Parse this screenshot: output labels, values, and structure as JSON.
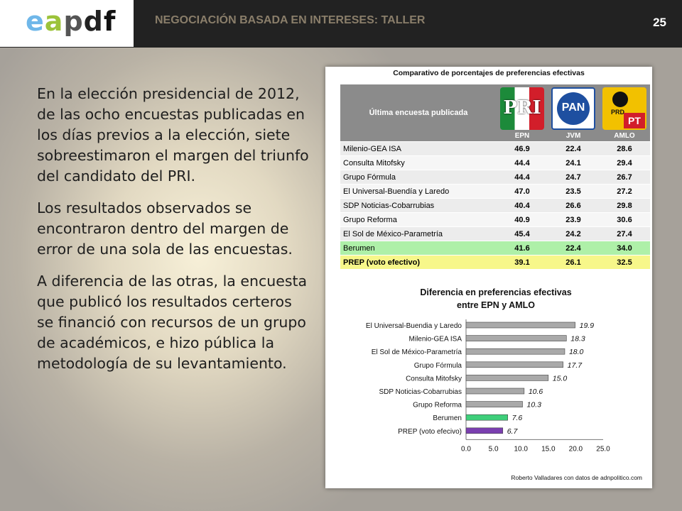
{
  "header": {
    "logo": [
      "e",
      "a",
      "p",
      "d",
      "f"
    ],
    "title": "NEGOCIACIÓN BASADA EN INTERESES: TALLER",
    "page_number": "25"
  },
  "body": {
    "paragraphs": [
      "En la elección presidencial de 2012, de las ocho encuestas publicadas en los días previos a la elección, siete sobreestimaron el margen del triunfo del candidato del PRI.",
      "Los resultados observados se encontraron dentro del margen de error de una sola de las encuestas.",
      "A diferencia de las otras, la encuesta que publicó los resultados certeros se financió con recursos de un grupo de académicos, e hizo pública la metodología de su levantamiento."
    ]
  },
  "table": {
    "title": "Comparativo de porcentajes de preferencias efectivas",
    "header_label": "Última encuesta publicada",
    "parties": [
      {
        "logo_text": "PRI",
        "candidate": "EPN",
        "icon": "pri-logo-icon"
      },
      {
        "logo_text": "PAN",
        "candidate": "JVM",
        "icon": "pan-logo-icon"
      },
      {
        "logo_text": "PRD",
        "logo_text2": "PT",
        "candidate": "AMLO",
        "icon": "prd-pt-logo-icon"
      }
    ],
    "rows": [
      {
        "name": "Milenio-GEA ISA",
        "epn": "46.9",
        "jvm": "22.4",
        "amlo": "28.6"
      },
      {
        "name": "Consulta Mitofsky",
        "epn": "44.4",
        "jvm": "24.1",
        "amlo": "29.4"
      },
      {
        "name": "Grupo Fórmula",
        "epn": "44.4",
        "jvm": "24.7",
        "amlo": "26.7"
      },
      {
        "name": "El Universal-Buendía y Laredo",
        "epn": "47.0",
        "jvm": "23.5",
        "amlo": "27.2"
      },
      {
        "name": "SDP Noticias-Cobarrubias",
        "epn": "40.4",
        "jvm": "26.6",
        "amlo": "29.8"
      },
      {
        "name": "Grupo Reforma",
        "epn": "40.9",
        "jvm": "23.9",
        "amlo": "30.6"
      },
      {
        "name": "El Sol de México-Parametría",
        "epn": "45.4",
        "jvm": "24.2",
        "amlo": "27.4"
      },
      {
        "name": "Berumen",
        "epn": "41.6",
        "jvm": "22.4",
        "amlo": "34.0"
      },
      {
        "name": "PREP (voto efectivo)",
        "epn": "39.1",
        "jvm": "26.1",
        "amlo": "32.5"
      }
    ],
    "colors": {
      "berumen": "#aef0a8",
      "prep": "#f7f78a",
      "header": "#8b8b8b"
    }
  },
  "chart_data": {
    "type": "bar",
    "orientation": "horizontal",
    "title": "Diferencia en preferencias efectivas",
    "subtitle": "entre EPN y AMLO",
    "categories": [
      "El Universal-Buendia y Laredo",
      "Milenio-GEA ISA",
      "El Sol de México-Parametría",
      "Grupo Fórmula",
      "Consulta Mitofsky",
      "SDP Noticias-Cobarrubias",
      "Grupo Reforma",
      "Berumen",
      "PREP (voto efecivo)"
    ],
    "values": [
      19.9,
      18.3,
      18.0,
      17.7,
      15.0,
      10.6,
      10.3,
      7.6,
      6.7
    ],
    "value_labels": [
      "19.9",
      "18.3",
      "18.0",
      "17.7",
      "15.0",
      "10.6",
      "10.3",
      "7.6",
      "6.7"
    ],
    "bar_colors": [
      "#a9a9a9",
      "#a9a9a9",
      "#a9a9a9",
      "#a9a9a9",
      "#a9a9a9",
      "#a9a9a9",
      "#a9a9a9",
      "#3ecf7a",
      "#7b3fb0"
    ],
    "xlim": [
      0,
      25
    ],
    "xticks": [
      "0.0",
      "5.0",
      "10.0",
      "15.0",
      "20.0",
      "25.0"
    ],
    "grid": false,
    "credit": "Roberto Valladares con datos de adnpolitico.com"
  }
}
